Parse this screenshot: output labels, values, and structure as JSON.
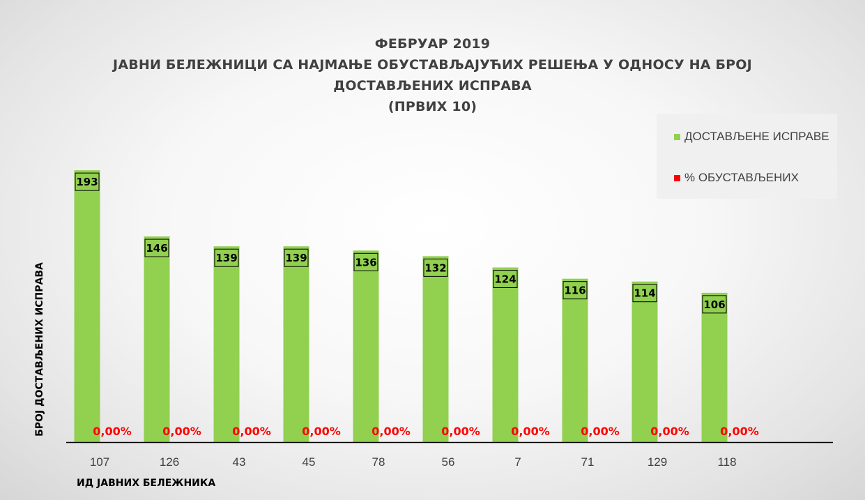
{
  "chart_data": {
    "type": "bar",
    "title_lines": [
      "ФЕБРУАР 2019",
      "ЈАВНИ БЕЛЕЖНИЦИ СА НАЈМАЊЕ ОБУСТАВЉАЈУЋИХ РЕШЕЊА У ОДНОСУ НА БРОЈ",
      "ДОСТАВЉЕНИХ ИСПРАВА",
      "(ПРВИХ 10)"
    ],
    "xlabel": "ИД ЈАВНИХ БЕЛЕЖНИКА",
    "ylabel": "БРОЈ ДОСТАВЉЕНИХ ИСПРАВА",
    "categories": [
      "107",
      "126",
      "43",
      "45",
      "78",
      "56",
      "7",
      "71",
      "129",
      "118"
    ],
    "series": [
      {
        "name": "ДОСТАВЉЕНЕ ИСПРАВЕ",
        "color": "#92d050",
        "values": [
          193,
          146,
          139,
          139,
          136,
          132,
          124,
          116,
          114,
          106
        ]
      },
      {
        "name": "% ОБУСТАВЉЕНИХ",
        "color": "#ff0000",
        "values": [
          0,
          0,
          0,
          0,
          0,
          0,
          0,
          0,
          0,
          0
        ],
        "labels": [
          "0,00%",
          "0,00%",
          "0,00%",
          "0,00%",
          "0,00%",
          "0,00%",
          "0,00%",
          "0,00%",
          "0,00%",
          "0,00%"
        ]
      }
    ],
    "ylim": [
      0,
      200
    ],
    "grid": false,
    "legend_position": "top-right"
  }
}
